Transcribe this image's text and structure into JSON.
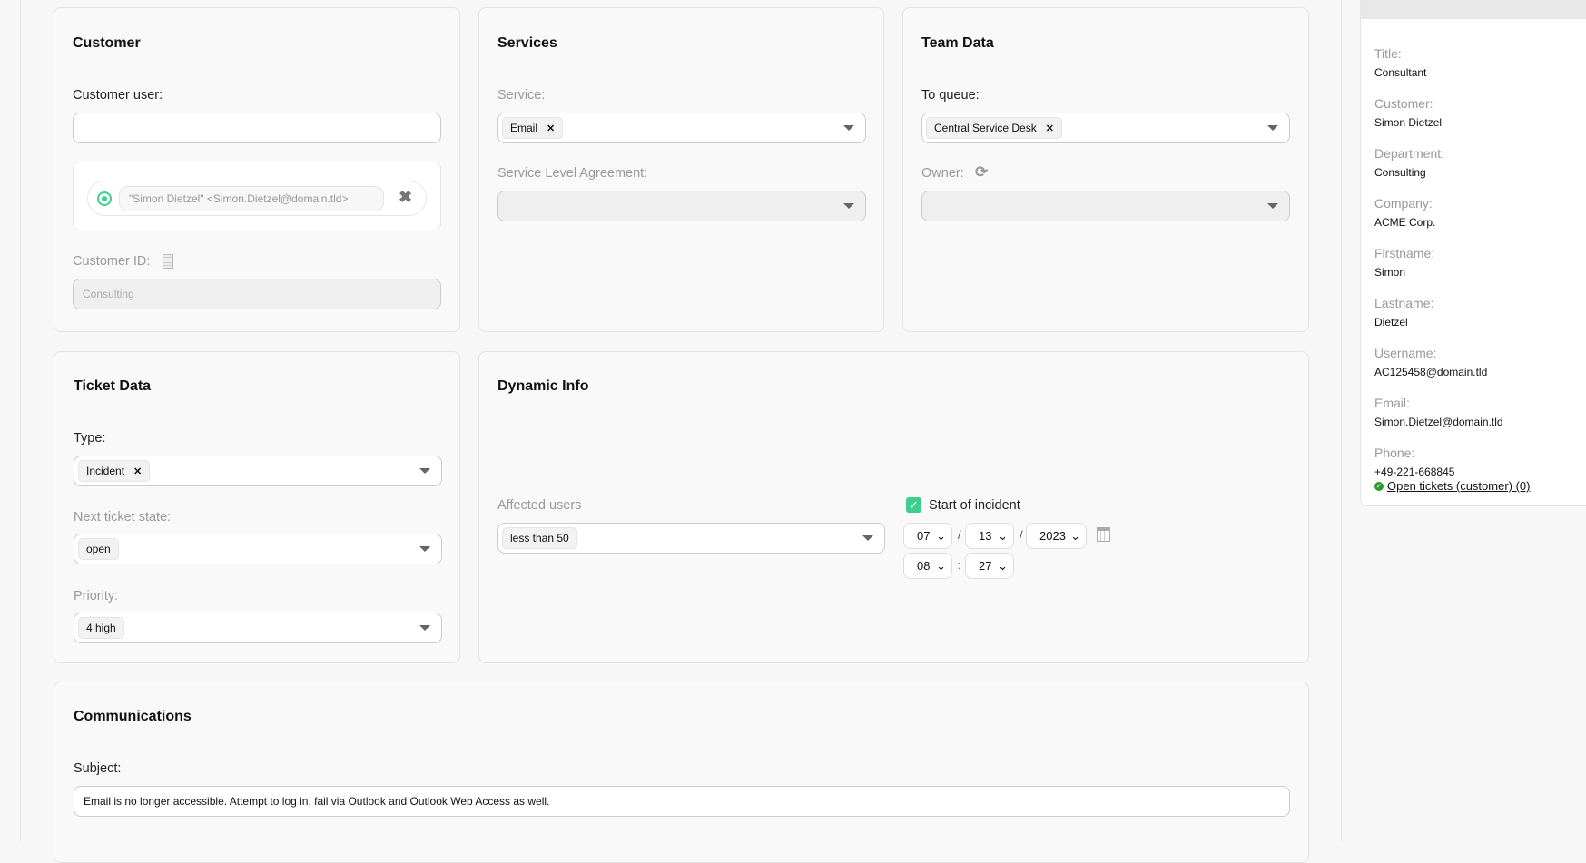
{
  "customer": {
    "title": "Customer",
    "customer_user_label": "Customer user:",
    "customer_user_value": "",
    "selected_customer": "\"Simon Dietzel\" <Simon.Dietzel@domain.tld>",
    "customer_id_label": "Customer ID:",
    "customer_id_value": "Consulting"
  },
  "services": {
    "title": "Services",
    "service_label": "Service:",
    "service_value": "Email",
    "sla_label": "Service Level Agreement:",
    "sla_value": ""
  },
  "team": {
    "title": "Team Data",
    "queue_label": "To queue:",
    "queue_value": "Central Service Desk",
    "owner_label": "Owner:",
    "owner_value": ""
  },
  "ticket": {
    "title": "Ticket Data",
    "type_label": "Type:",
    "type_value": "Incident",
    "state_label": "Next ticket state:",
    "state_value": "open",
    "priority_label": "Priority:",
    "priority_value": "4 high"
  },
  "dynamic": {
    "title": "Dynamic Info",
    "affected_label": "Affected users",
    "affected_value": "less than 50",
    "start_label": "Start of incident",
    "start_checked": true,
    "month": "07",
    "day": "13",
    "year": "2023",
    "hour": "08",
    "minute": "27",
    "date_sep": "/",
    "time_sep": ":"
  },
  "comms": {
    "title": "Communications",
    "subject_label": "Subject:",
    "subject_value": "Email is no longer accessible. Attempt to log in, fail via Outlook and Outlook Web Access as well."
  },
  "sidebar": {
    "items": [
      {
        "label": "Title:",
        "value": "Consultant"
      },
      {
        "label": "Customer:",
        "value": "Simon Dietzel"
      },
      {
        "label": "Department:",
        "value": "Consulting"
      },
      {
        "label": "Company:",
        "value": "ACME Corp."
      },
      {
        "label": "Firstname:",
        "value": "Simon"
      },
      {
        "label": "Lastname:",
        "value": "Dietzel"
      },
      {
        "label": "Username:",
        "value": "AC125458@domain.tld"
      },
      {
        "label": "Email:",
        "value": "Simon.Dietzel@domain.tld"
      },
      {
        "label": "Phone:",
        "value": "+49-221-668845"
      }
    ],
    "open_tickets": "Open tickets (customer) (0)"
  },
  "colors": {
    "accent": "#3ecf8e",
    "border": "#cccccc"
  }
}
